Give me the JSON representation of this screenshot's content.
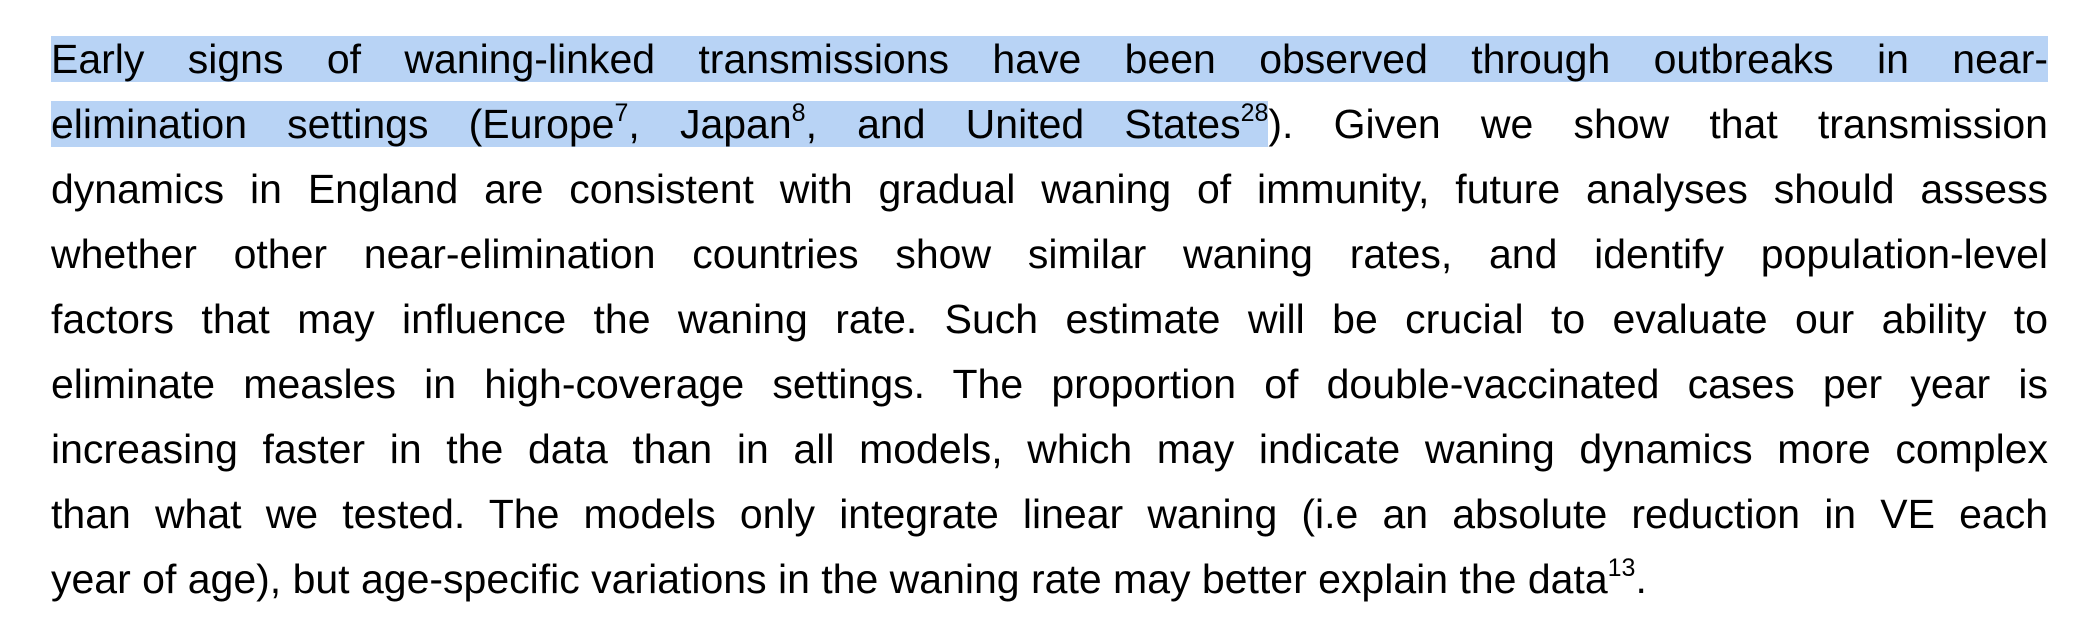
{
  "document": {
    "highlight_color": "#b8d3f5",
    "lines": [
      {
        "highlight": "Early signs of waning-linked transmissions have been observed through outbreaks in near-"
      },
      {
        "seg1": "elimination settings (Europe",
        "sup1": "7",
        "seg2": ", Japan",
        "sup2": "8",
        "seg3": ", and United States",
        "sup3": "28",
        "rest": "). Given we show that transmission"
      },
      {
        "text": "dynamics in England are consistent with gradual waning of immunity, future analyses should assess"
      },
      {
        "text": "whether other near-elimination countries show similar waning rates, and identify population-level"
      },
      {
        "text": "factors that may influence the waning rate. Such estimate will be crucial to evaluate our ability to"
      },
      {
        "text": "eliminate measles in high-coverage settings. The proportion of double-vaccinated cases per year is"
      },
      {
        "text": "increasing faster in the data than in all models, which may indicate waning dynamics more complex"
      },
      {
        "text": "than what we tested. The models only integrate linear waning (i.e an absolute reduction in VE each"
      },
      {
        "text": "year of age), but age-specific variations in the waning rate may better explain the data",
        "sup": "13",
        "end": "."
      }
    ]
  }
}
